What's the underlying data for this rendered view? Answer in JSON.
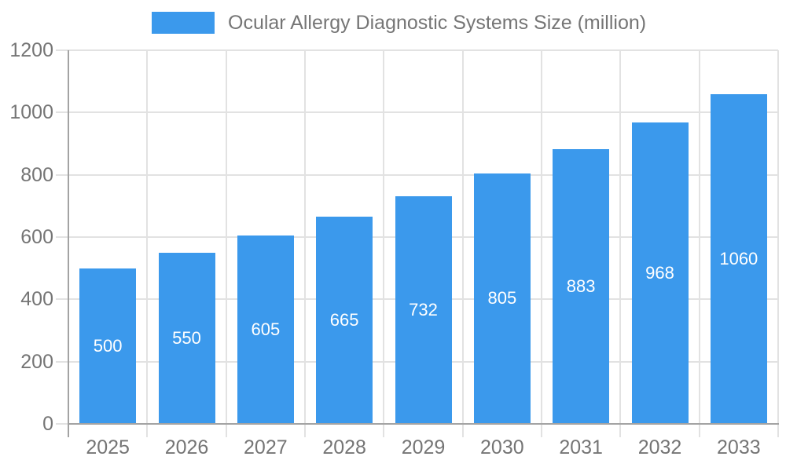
{
  "legend": {
    "label": "Ocular Allergy Diagnostic Systems Size (million)"
  },
  "chart_data": {
    "type": "bar",
    "title": "Ocular Allergy Diagnostic Systems Size (million)",
    "categories": [
      "2025",
      "2026",
      "2027",
      "2028",
      "2029",
      "2030",
      "2031",
      "2032",
      "2033"
    ],
    "values": [
      500,
      550,
      605,
      665,
      732,
      805,
      883,
      968,
      1060
    ],
    "xlabel": "",
    "ylabel": "",
    "ylim": [
      0,
      1200
    ],
    "yticks": [
      0,
      200,
      400,
      600,
      800,
      1000,
      1200
    ],
    "grid": true,
    "legend_position": "top",
    "bar_value_labels": "inside-center",
    "colors": {
      "bar": "#3B99EC",
      "bar_label": "#FFFFFF",
      "axis_text": "#757575",
      "grid_line": "#E2E2E2",
      "axis_line": "#A3A3A3",
      "background": "#FFFFFF"
    }
  }
}
